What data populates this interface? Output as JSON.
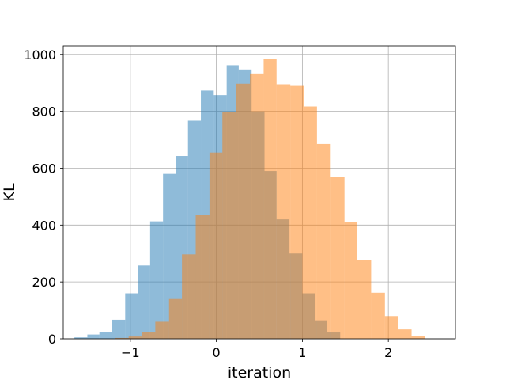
{
  "chart_data": {
    "type": "bar",
    "subtype": "overlapping-histogram",
    "title": "",
    "xlabel": "iteration",
    "ylabel": "KL",
    "xlim": [
      -1.78,
      2.78
    ],
    "ylim": [
      0,
      1030
    ],
    "xticks": [
      -1,
      0,
      1,
      2
    ],
    "xtick_labels": [
      "−1",
      "0",
      "1",
      "2"
    ],
    "yticks": [
      0,
      200,
      400,
      600,
      800,
      1000
    ],
    "ytick_labels": [
      "0",
      "200",
      "400",
      "600",
      "800",
      "1000"
    ],
    "grid": true,
    "legend": "none",
    "series": [
      {
        "color": "#1f77b4",
        "opacity": 0.5,
        "bin_edges": [
          -1.65,
          -1.5,
          -1.36,
          -1.21,
          -1.06,
          -0.91,
          -0.77,
          -0.62,
          -0.47,
          -0.33,
          -0.18,
          -0.03,
          0.12,
          0.26,
          0.41,
          0.56,
          0.7,
          0.85,
          1.0,
          1.15,
          1.29,
          1.44
        ],
        "counts": [
          5,
          15,
          25,
          67,
          160,
          258,
          413,
          580,
          643,
          767,
          873,
          857,
          962,
          947,
          800,
          590,
          420,
          300,
          160,
          65,
          25
        ]
      },
      {
        "color": "#ff7f0e",
        "opacity": 0.5,
        "bin_edges": [
          -1.18,
          -1.02,
          -0.87,
          -0.71,
          -0.55,
          -0.4,
          -0.24,
          -0.08,
          0.07,
          0.23,
          0.39,
          0.55,
          0.7,
          0.86,
          1.02,
          1.17,
          1.33,
          1.49,
          1.64,
          1.8,
          1.96,
          2.11,
          2.27,
          2.43
        ],
        "counts": [
          3,
          8,
          25,
          60,
          140,
          297,
          437,
          655,
          797,
          897,
          933,
          985,
          895,
          892,
          817,
          685,
          568,
          410,
          277,
          162,
          80,
          33,
          9
        ]
      }
    ]
  }
}
